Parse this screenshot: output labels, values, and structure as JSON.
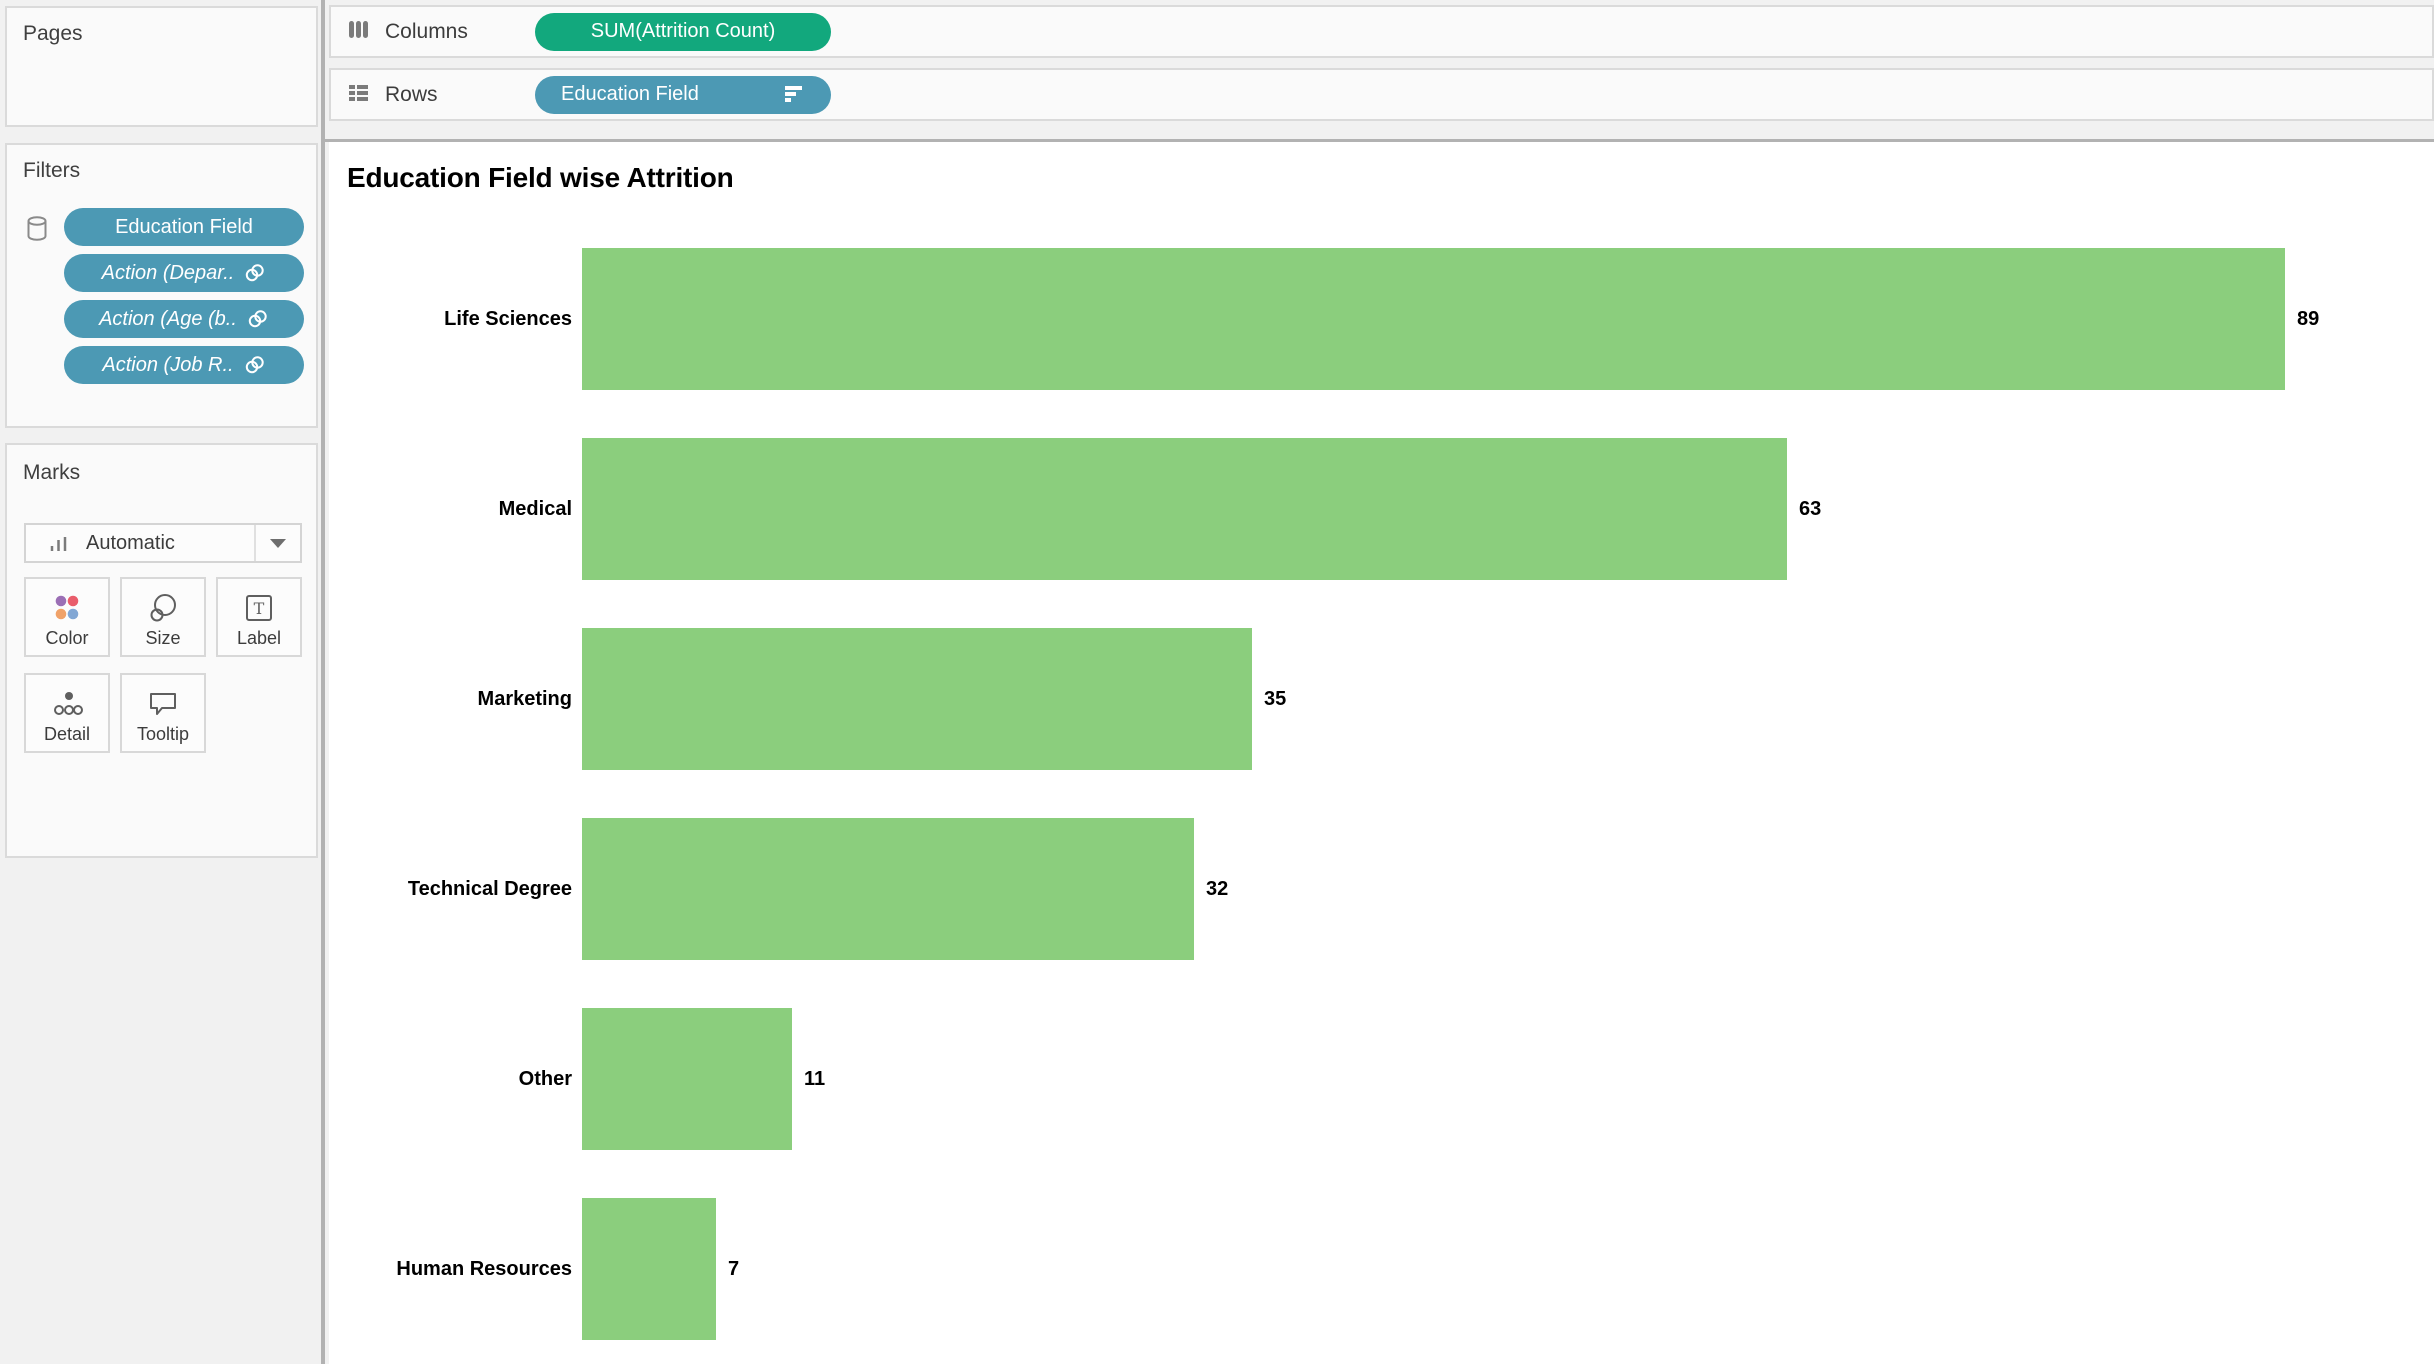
{
  "colors": {
    "measure_pill": "#12a87d",
    "dimension_pill": "#4c99b4",
    "bar_fill": "#8bce7d"
  },
  "pages_panel": {
    "title": "Pages"
  },
  "shelves": {
    "columns": {
      "label": "Columns",
      "pill": "SUM(Attrition Count)"
    },
    "rows": {
      "label": "Rows",
      "pill": "Education Field"
    }
  },
  "filters_panel": {
    "title": "Filters",
    "pills": [
      {
        "label": "Education Field"
      },
      {
        "label": "Action (Depar.."
      },
      {
        "label": "Action (Age (b.."
      },
      {
        "label": "Action (Job R.."
      }
    ]
  },
  "marks_panel": {
    "title": "Marks",
    "mark_type": "Automatic",
    "buttons": [
      "Color",
      "Size",
      "Label",
      "Detail",
      "Tooltip"
    ]
  },
  "chart_data": {
    "type": "bar",
    "orientation": "horizontal",
    "title": "Education Field wise Attrition",
    "categories": [
      "Life Sciences",
      "Medical",
      "Marketing",
      "Technical Degree",
      "Other",
      "Human Resources"
    ],
    "values": [
      89,
      63,
      35,
      32,
      11,
      7
    ],
    "series_name": "SUM(Attrition Count)",
    "sort": "descending",
    "bar_color": "#8bce7d",
    "value_labels_shown": true,
    "axis_shown": false,
    "xlim": [
      0,
      89
    ]
  }
}
